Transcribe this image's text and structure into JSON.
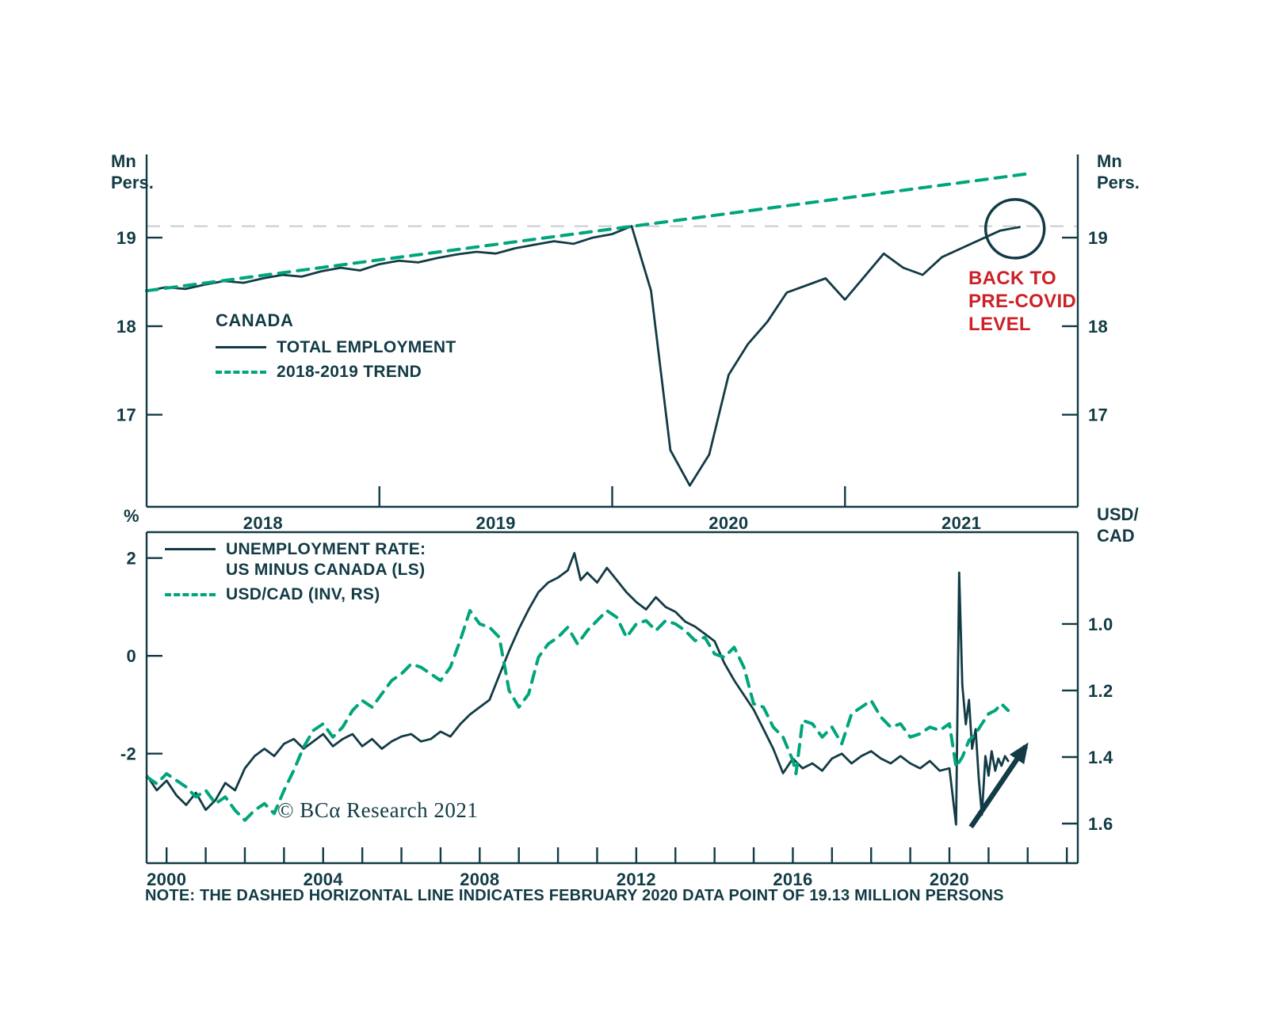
{
  "colors": {
    "dark": "#123b45",
    "green": "#00a57c",
    "red": "#cc2127",
    "gray": "#c6cbcd"
  },
  "note": "NOTE: THE DASHED HORIZONTAL LINE INDICATES FEBRUARY 2020 DATA POINT OF 19.13 MILLION PERSONS",
  "copyright": "© BCα Research 2021",
  "chart_data": [
    {
      "type": "line",
      "title": "CANADA",
      "ylabel_left": "Mn\nPers.",
      "ylabel_right": "Mn\nPers.",
      "xlim": [
        2018,
        2022
      ],
      "ylim": [
        15.96,
        19.94
      ],
      "x_tick_marks": [
        2019,
        2020,
        2021
      ],
      "x_tick_labels": [
        {
          "v": 2018.5,
          "label": "2018"
        },
        {
          "v": 2019.5,
          "label": "2019"
        },
        {
          "v": 2020.5,
          "label": "2020"
        },
        {
          "v": 2021.5,
          "label": "2021"
        }
      ],
      "y_tick_labels": [
        {
          "v": 19,
          "label": "19"
        },
        {
          "v": 18,
          "label": "18"
        },
        {
          "v": 17,
          "label": "17"
        }
      ],
      "hline": {
        "v": 19.13,
        "meaning": "FEBRUARY 2020 DATA POINT OF 19.13 MILLION PERSONS"
      },
      "series": [
        {
          "name": "TOTAL EMPLOYMENT",
          "style": "solid",
          "color_key": "dark",
          "x_start": 2018.0,
          "x_step": 0.0833333,
          "y": [
            18.4,
            18.44,
            18.42,
            18.47,
            18.51,
            18.49,
            18.54,
            18.58,
            18.56,
            18.62,
            18.66,
            18.63,
            18.7,
            18.74,
            18.72,
            18.77,
            18.81,
            18.84,
            18.82,
            18.88,
            18.92,
            18.96,
            18.93,
            19.0,
            19.04,
            19.13,
            18.4,
            16.6,
            16.2,
            16.55,
            17.45,
            17.8,
            18.05,
            18.38,
            18.46,
            18.54,
            18.3,
            18.56,
            18.82,
            18.66,
            18.58,
            18.78,
            18.88,
            18.98,
            19.08,
            19.12
          ]
        },
        {
          "name": "2018-2019 TREND",
          "style": "dashed",
          "color_key": "green",
          "x": [
            2018.0,
            2021.78
          ],
          "y": [
            18.4,
            19.72
          ]
        }
      ],
      "annotation_text": "BACK TO\nPRE-COVID\nLEVEL",
      "annotation_circle": {
        "x": 2021.73,
        "y": 19.1
      }
    },
    {
      "type": "line",
      "ylabel_left": "%",
      "ylabel_right": "USD/\nCAD",
      "xlim": [
        1999.49,
        2023.28
      ],
      "ylim_left": [
        -4.24,
        2.53
      ],
      "ylim_right": [
        1.719,
        0.724
      ],
      "x_minor_tick_range": [
        2000,
        2023
      ],
      "x_tick_labels": [
        {
          "v": 2000,
          "label": "2000"
        },
        {
          "v": 2004,
          "label": "2004"
        },
        {
          "v": 2008,
          "label": "2008"
        },
        {
          "v": 2012,
          "label": "2012"
        },
        {
          "v": 2016,
          "label": "2016"
        },
        {
          "v": 2020,
          "label": "2020"
        }
      ],
      "y_tick_labels_left": [
        {
          "v": 2,
          "label": "2"
        },
        {
          "v": 0,
          "label": "0"
        },
        {
          "v": -2,
          "label": "-2"
        }
      ],
      "y_tick_labels_right": [
        {
          "v": 1.0,
          "label": "1.0"
        },
        {
          "v": 1.2,
          "label": "1.2"
        },
        {
          "v": 1.4,
          "label": "1.4"
        },
        {
          "v": 1.6,
          "label": "1.6"
        }
      ],
      "series": [
        {
          "name": "UNEMPLOYMENT RATE:\nUS MINUS CANADA (LS)",
          "style": "solid",
          "color_key": "dark",
          "axis": "left",
          "x": [
            1999.5,
            1999.75,
            2000,
            2000.25,
            2000.5,
            2000.75,
            2001,
            2001.25,
            2001.5,
            2001.75,
            2002,
            2002.25,
            2002.5,
            2002.75,
            2003,
            2003.25,
            2003.5,
            2003.75,
            2004,
            2004.25,
            2004.5,
            2004.75,
            2005,
            2005.25,
            2005.5,
            2005.75,
            2006,
            2006.25,
            2006.5,
            2006.75,
            2007,
            2007.25,
            2007.5,
            2007.75,
            2008,
            2008.25,
            2008.5,
            2008.75,
            2009,
            2009.25,
            2009.5,
            2009.75,
            2010,
            2010.25,
            2010.42,
            2010.58,
            2010.75,
            2011,
            2011.25,
            2011.5,
            2011.75,
            2012,
            2012.25,
            2012.5,
            2012.75,
            2013,
            2013.25,
            2013.5,
            2013.75,
            2014,
            2014.25,
            2014.5,
            2014.75,
            2015,
            2015.25,
            2015.5,
            2015.75,
            2016,
            2016.25,
            2016.5,
            2016.75,
            2017,
            2017.25,
            2017.5,
            2017.75,
            2018,
            2018.25,
            2018.5,
            2018.75,
            2019,
            2019.25,
            2019.5,
            2019.75,
            2020,
            2020.17,
            2020.25,
            2020.33,
            2020.42,
            2020.5,
            2020.58,
            2020.67,
            2020.75,
            2020.83,
            2020.92,
            2021,
            2021.08,
            2021.17,
            2021.25,
            2021.33,
            2021.42,
            2021.5
          ],
          "y": [
            -2.45,
            -2.75,
            -2.55,
            -2.85,
            -3.05,
            -2.8,
            -3.15,
            -2.95,
            -2.6,
            -2.75,
            -2.3,
            -2.05,
            -1.9,
            -2.05,
            -1.8,
            -1.7,
            -1.9,
            -1.75,
            -1.6,
            -1.85,
            -1.7,
            -1.6,
            -1.85,
            -1.7,
            -1.9,
            -1.75,
            -1.65,
            -1.6,
            -1.75,
            -1.7,
            -1.55,
            -1.65,
            -1.4,
            -1.2,
            -1.05,
            -0.9,
            -0.4,
            0.1,
            0.55,
            0.95,
            1.3,
            1.5,
            1.6,
            1.75,
            2.1,
            1.55,
            1.7,
            1.5,
            1.8,
            1.55,
            1.3,
            1.1,
            0.95,
            1.2,
            1.0,
            0.9,
            0.7,
            0.6,
            0.45,
            0.3,
            -0.15,
            -0.5,
            -0.8,
            -1.1,
            -1.5,
            -1.9,
            -2.4,
            -2.1,
            -2.3,
            -2.2,
            -2.35,
            -2.1,
            -2.0,
            -2.2,
            -2.05,
            -1.95,
            -2.1,
            -2.2,
            -2.05,
            -2.2,
            -2.3,
            -2.15,
            -2.35,
            -2.3,
            -3.45,
            1.7,
            -0.6,
            -1.4,
            -0.9,
            -1.9,
            -1.5,
            -2.5,
            -3.25,
            -2.05,
            -2.45,
            -1.95,
            -2.35,
            -2.1,
            -2.25,
            -2.05,
            -2.15
          ]
        },
        {
          "name": "USD/CAD (INV, RS)",
          "style": "dashed",
          "color_key": "green",
          "axis": "right",
          "x": [
            1999.5,
            1999.75,
            2000,
            2000.25,
            2000.5,
            2000.75,
            2001,
            2001.25,
            2001.5,
            2001.75,
            2002,
            2002.25,
            2002.5,
            2002.75,
            2003,
            2003.25,
            2003.5,
            2003.75,
            2004,
            2004.25,
            2004.5,
            2004.75,
            2005,
            2005.25,
            2005.5,
            2005.75,
            2006,
            2006.25,
            2006.5,
            2006.75,
            2007,
            2007.25,
            2007.5,
            2007.75,
            2008,
            2008.25,
            2008.5,
            2008.75,
            2009,
            2009.25,
            2009.5,
            2009.75,
            2010,
            2010.25,
            2010.5,
            2010.75,
            2011,
            2011.25,
            2011.5,
            2011.75,
            2012,
            2012.25,
            2012.5,
            2012.75,
            2013,
            2013.25,
            2013.5,
            2013.75,
            2014,
            2014.25,
            2014.5,
            2014.75,
            2015,
            2015.25,
            2015.5,
            2015.75,
            2016,
            2016.08,
            2016.25,
            2016.5,
            2016.75,
            2017,
            2017.25,
            2017.5,
            2017.75,
            2018,
            2018.25,
            2018.5,
            2018.75,
            2019,
            2019.25,
            2019.5,
            2019.75,
            2020,
            2020.17,
            2020.33,
            2020.5,
            2020.67,
            2020.83,
            2021,
            2021.17,
            2021.33,
            2021.5
          ],
          "y": [
            1.46,
            1.48,
            1.45,
            1.47,
            1.49,
            1.52,
            1.5,
            1.54,
            1.52,
            1.56,
            1.59,
            1.56,
            1.54,
            1.57,
            1.5,
            1.44,
            1.37,
            1.32,
            1.3,
            1.34,
            1.31,
            1.26,
            1.23,
            1.25,
            1.21,
            1.17,
            1.15,
            1.12,
            1.13,
            1.15,
            1.17,
            1.13,
            1.05,
            0.96,
            1.0,
            1.01,
            1.04,
            1.2,
            1.25,
            1.21,
            1.1,
            1.06,
            1.04,
            1.01,
            1.06,
            1.02,
            0.99,
            0.96,
            0.98,
            1.04,
            1.0,
            0.99,
            1.02,
            0.99,
            1.0,
            1.02,
            1.05,
            1.04,
            1.09,
            1.1,
            1.07,
            1.13,
            1.24,
            1.25,
            1.31,
            1.34,
            1.41,
            1.45,
            1.29,
            1.3,
            1.34,
            1.31,
            1.36,
            1.27,
            1.25,
            1.23,
            1.28,
            1.31,
            1.3,
            1.34,
            1.33,
            1.31,
            1.32,
            1.3,
            1.43,
            1.4,
            1.35,
            1.33,
            1.3,
            1.27,
            1.26,
            1.24,
            1.26
          ]
        }
      ],
      "annotation_arrow": {
        "from_x": 2020.55,
        "from_y": -3.5,
        "to_x": 2021.95,
        "to_y": -1.85
      }
    }
  ]
}
